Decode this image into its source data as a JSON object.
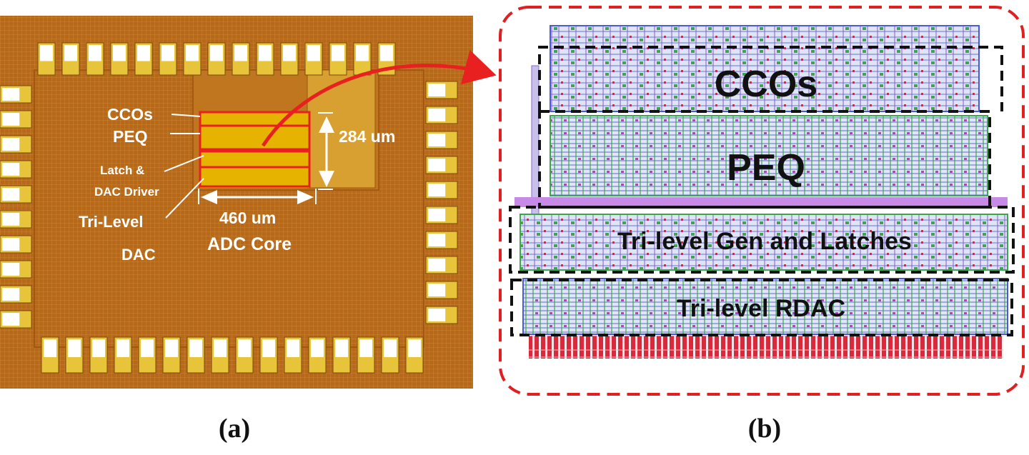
{
  "panel_a": {
    "labels": {
      "ccos": "CCOs",
      "peq": "PEQ",
      "latch_line1": "Latch &",
      "latch_line2": "DAC Driver",
      "trilevel_line1": "Tri-Level",
      "trilevel_line2": "DAC",
      "height_dim": "284 um",
      "width_dim": "460 um",
      "core": "ADC Core"
    },
    "caption": "(a)",
    "colors": {
      "die": "#b86a16",
      "core_block": "#e8b800",
      "highlight": "#e82020",
      "pad": "#e8c43a"
    }
  },
  "panel_b": {
    "labels": {
      "ccos": "CCOs",
      "peq": "PEQ",
      "latches": "Tri-level Gen and Latches",
      "rdac": "Tri-level RDAC"
    },
    "caption": "(b)",
    "colors": {
      "frame": "#e02020",
      "box": "#111111",
      "layout_blue": "#4a5ad8",
      "layout_green": "#3aa84a",
      "resistor": "#d82a3a"
    }
  }
}
